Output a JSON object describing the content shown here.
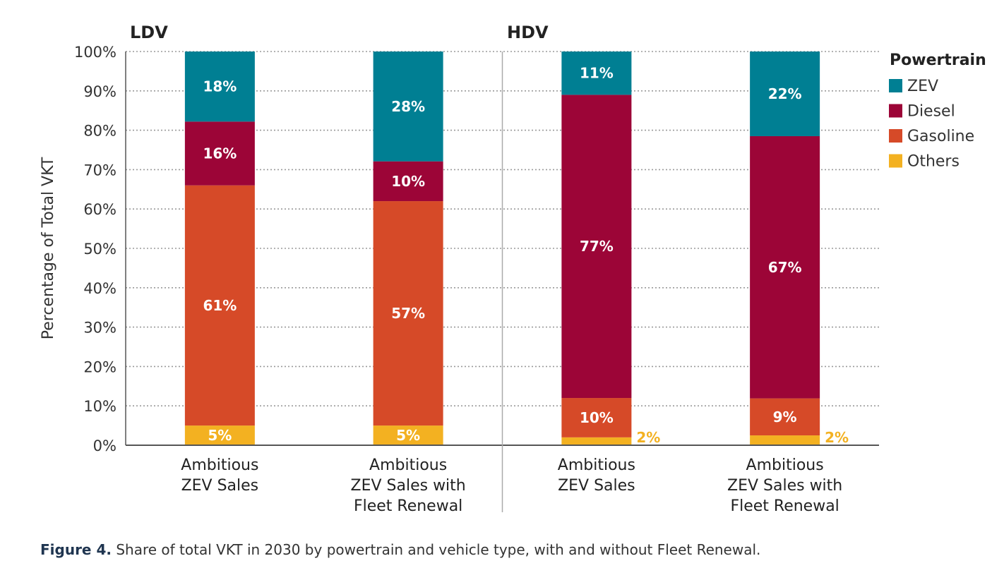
{
  "chart_data": {
    "type": "bar",
    "stacked": true,
    "ylabel": "Percentage of Total VKT",
    "ylim": [
      0,
      100
    ],
    "yticks": [
      "0%",
      "10%",
      "20%",
      "30%",
      "40%",
      "50%",
      "60%",
      "70%",
      "80%",
      "90%",
      "100%"
    ],
    "grid": true,
    "groups": [
      {
        "name": "LDV",
        "categories": [
          0,
          1
        ]
      },
      {
        "name": "HDV",
        "categories": [
          2,
          3
        ]
      }
    ],
    "categories": [
      [
        "Ambitious",
        "ZEV Sales"
      ],
      [
        "Ambitious",
        "ZEV Sales with",
        "Fleet Renewal"
      ],
      [
        "Ambitious",
        "ZEV Sales"
      ],
      [
        "Ambitious",
        "ZEV Sales with",
        "Fleet Renewal"
      ]
    ],
    "series": [
      {
        "name": "Others",
        "color": "#f3b121",
        "values": [
          5,
          5,
          2,
          2.5
        ],
        "labels": [
          "5%",
          "5%",
          "2%",
          "2%"
        ],
        "label_outside": [
          false,
          false,
          true,
          true
        ]
      },
      {
        "name": "Gasoline",
        "color": "#d64a28",
        "values": [
          61,
          57,
          10,
          9.4
        ],
        "labels": [
          "61%",
          "57%",
          "10%",
          "9%"
        ]
      },
      {
        "name": "Diesel",
        "color": "#9c0537",
        "values": [
          16.2,
          10.1,
          77,
          66.6
        ],
        "labels": [
          "16%",
          "10%",
          "77%",
          "67%"
        ]
      },
      {
        "name": "ZEV",
        "color": "#007f93",
        "values": [
          17.8,
          27.9,
          11,
          21.5
        ],
        "labels": [
          "18%",
          "28%",
          "11%",
          "22%"
        ]
      }
    ],
    "legend": {
      "title": "Powertrain",
      "position": "top-right",
      "order": [
        "ZEV",
        "Diesel",
        "Gasoline",
        "Others"
      ]
    }
  },
  "caption": {
    "prefix": "Figure 4.",
    "text": " Share of total VKT in 2030 by powertrain and vehicle type, with and without Fleet Renewal."
  }
}
